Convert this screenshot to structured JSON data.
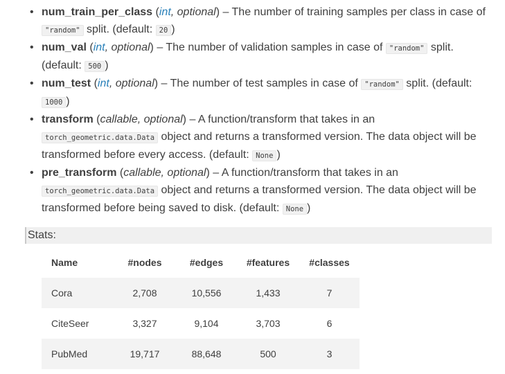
{
  "params": [
    {
      "name": "num_train_per_class",
      "type_main": "int",
      "type_rest": ", optional",
      "desc_parts": [
        {
          "t": "text",
          "v": " – The number of training samples per class in case of "
        },
        {
          "t": "code",
          "v": "\"random\""
        },
        {
          "t": "text",
          "v": " split. (default: "
        },
        {
          "t": "code",
          "v": "20"
        },
        {
          "t": "text",
          "v": ")"
        }
      ]
    },
    {
      "name": "num_val",
      "type_main": "int",
      "type_rest": ", optional",
      "desc_parts": [
        {
          "t": "text",
          "v": " – The number of validation samples in case of "
        },
        {
          "t": "code",
          "v": "\"random\""
        },
        {
          "t": "text",
          "v": " split. (default: "
        },
        {
          "t": "code",
          "v": "500"
        },
        {
          "t": "text",
          "v": ")"
        }
      ]
    },
    {
      "name": "num_test",
      "type_main": "int",
      "type_rest": ", optional",
      "desc_parts": [
        {
          "t": "text",
          "v": " – The number of test samples in case of "
        },
        {
          "t": "code",
          "v": "\"random\""
        },
        {
          "t": "text",
          "v": " split. (default: "
        },
        {
          "t": "code",
          "v": "1000"
        },
        {
          "t": "text",
          "v": ")"
        }
      ]
    },
    {
      "name": "transform",
      "type_main": "",
      "type_rest": "callable, optional",
      "desc_parts": [
        {
          "t": "text",
          "v": " – A function/transform that takes in an "
        },
        {
          "t": "code",
          "v": "torch_geometric.data.Data"
        },
        {
          "t": "text",
          "v": " object and returns a transformed version. The data object will be transformed before every access. (default: "
        },
        {
          "t": "code",
          "v": "None"
        },
        {
          "t": "text",
          "v": ")"
        }
      ]
    },
    {
      "name": "pre_transform",
      "type_main": "",
      "type_rest": "callable, optional",
      "desc_parts": [
        {
          "t": "text",
          "v": " – A function/transform that takes in an "
        },
        {
          "t": "code",
          "v": "torch_geometric.data.Data"
        },
        {
          "t": "text",
          "v": " object and returns a transformed version. The data object will be transformed before being saved to disk. (default: "
        },
        {
          "t": "code",
          "v": "None"
        },
        {
          "t": "text",
          "v": ")"
        }
      ]
    }
  ],
  "stats": {
    "label": "Stats:",
    "headers": [
      "Name",
      "#nodes",
      "#edges",
      "#features",
      "#classes"
    ],
    "rows": [
      [
        "Cora",
        "2,708",
        "10,556",
        "1,433",
        "7"
      ],
      [
        "CiteSeer",
        "3,327",
        "9,104",
        "3,703",
        "6"
      ],
      [
        "PubMed",
        "19,717",
        "88,648",
        "500",
        "3"
      ]
    ]
  }
}
